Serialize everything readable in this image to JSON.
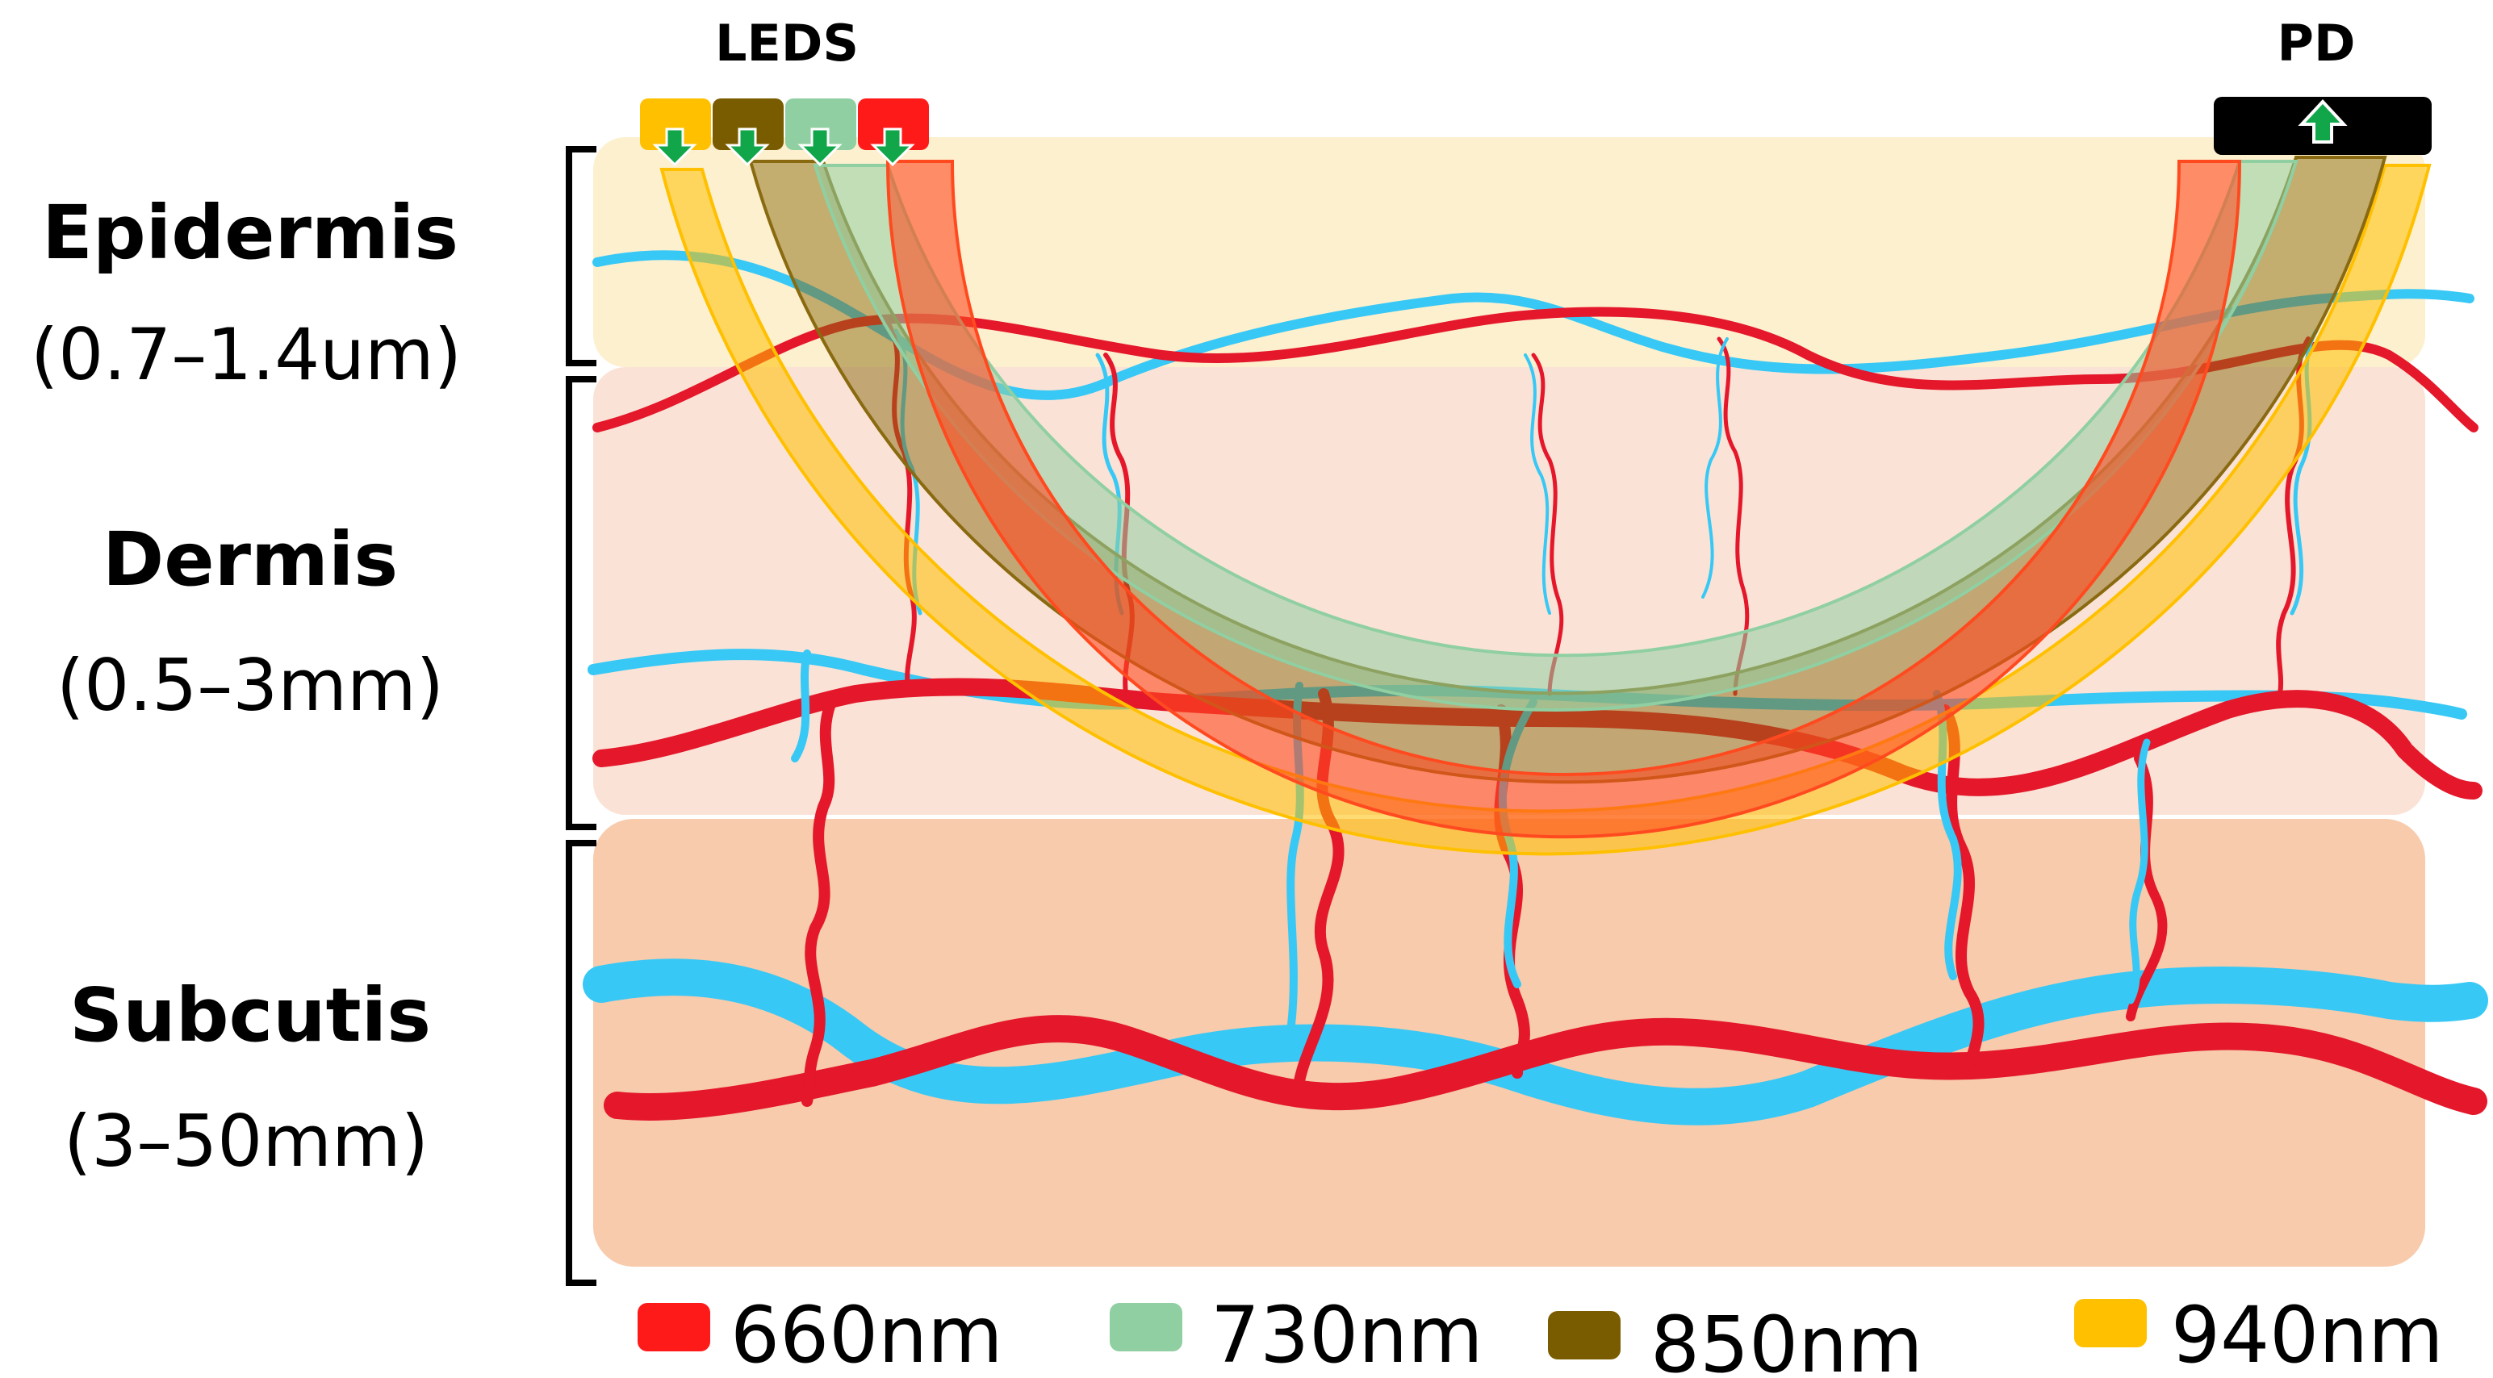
{
  "header": {
    "leds_label": "LEDS",
    "pd_label": "PD"
  },
  "layers": [
    {
      "name": "Epidermis",
      "range": "(0.7–1.4um)",
      "color": "#fdf0cf"
    },
    {
      "name": "Dermis",
      "range": "(0.5–3mm)",
      "color": "#fae3d6"
    },
    {
      "name": "Subcutis",
      "range": "(3–50mm)",
      "color": "#f7cbac"
    }
  ],
  "wavelengths": [
    {
      "label": "660nm",
      "color": "#ff1a1a",
      "path_color": "#ff4a20"
    },
    {
      "label": "730nm",
      "color": "#90cfa2",
      "path_color": "#90cfa2"
    },
    {
      "label": "850nm",
      "color": "#7a5c00",
      "path_color": "#8a6a10"
    },
    {
      "label": "940nm",
      "color": "#ffc000",
      "path_color": "#ffc000"
    }
  ],
  "vessel_colors": {
    "artery": "#e4172b",
    "vein": "#38c8f5"
  },
  "arrow_color": "#12a64a"
}
